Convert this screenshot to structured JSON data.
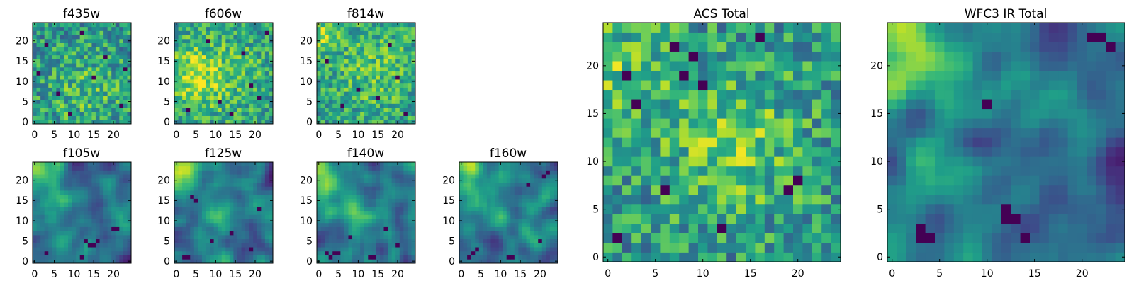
{
  "chart_data": [
    {
      "type": "heatmap",
      "title": "f435w",
      "xlabel": "",
      "ylabel": "",
      "xlim": [
        -0.5,
        24.5
      ],
      "ylim": [
        -0.5,
        24.5
      ],
      "xticks": [
        0,
        5,
        10,
        15,
        20
      ],
      "yticks": [
        0,
        5,
        10,
        15,
        20
      ],
      "xtick_labels": [
        "0",
        "5",
        "10",
        "15",
        "20"
      ],
      "ytick_labels": [
        "0",
        "5",
        "10",
        "15",
        "20"
      ],
      "grid_size": 25,
      "colormap": "viridis",
      "pattern": "noise",
      "seed": 11,
      "features": [
        {
          "x": 13,
          "y": 8,
          "r": 7,
          "amp": 0.15
        }
      ],
      "dark_cells": [
        [
          15,
          11
        ],
        [
          22,
          4
        ],
        [
          3,
          19
        ],
        [
          9,
          2
        ],
        [
          18,
          16
        ],
        [
          6,
          7
        ],
        [
          23,
          13
        ],
        [
          1,
          12
        ],
        [
          12,
          22
        ]
      ]
    },
    {
      "type": "heatmap",
      "title": "f606w",
      "xlabel": "",
      "ylabel": "",
      "xlim": [
        -0.5,
        24.5
      ],
      "ylim": [
        -0.5,
        24.5
      ],
      "xticks": [
        0,
        5,
        10,
        15,
        20
      ],
      "yticks": [
        0,
        5,
        10,
        15,
        20
      ],
      "xtick_labels": [
        "0",
        "5",
        "10",
        "15",
        "20"
      ],
      "ytick_labels": [
        "0",
        "5",
        "10",
        "15",
        "20"
      ],
      "grid_size": 25,
      "colormap": "viridis",
      "pattern": "band",
      "seed": 23,
      "features": [
        {
          "x": 4,
          "y": 11,
          "r": 5,
          "amp": 0.25
        },
        {
          "x": 12,
          "y": 12,
          "r": 9,
          "amp": 0.18
        }
      ],
      "dark_cells": [
        [
          14,
          2
        ],
        [
          8,
          20
        ],
        [
          21,
          6
        ],
        [
          3,
          3
        ],
        [
          17,
          17
        ],
        [
          11,
          5
        ],
        [
          23,
          22
        ],
        [
          19,
          9
        ]
      ]
    },
    {
      "type": "heatmap",
      "title": "f814w",
      "xlabel": "",
      "ylabel": "",
      "xlim": [
        -0.5,
        24.5
      ],
      "ylim": [
        -0.5,
        24.5
      ],
      "xticks": [
        0,
        5,
        10,
        15,
        20
      ],
      "yticks": [
        0,
        5,
        10,
        15,
        20
      ],
      "xtick_labels": [
        "0",
        "5",
        "10",
        "15",
        "20"
      ],
      "ytick_labels": [
        "0",
        "5",
        "10",
        "15",
        "20"
      ],
      "grid_size": 25,
      "colormap": "viridis",
      "pattern": "band",
      "seed": 37,
      "features": [
        {
          "x": 0,
          "y": 22,
          "r": 3,
          "amp": 0.3
        },
        {
          "x": 14,
          "y": 13,
          "r": 9,
          "amp": 0.2
        }
      ],
      "dark_cells": [
        [
          6,
          4
        ],
        [
          18,
          19
        ],
        [
          10,
          8
        ],
        [
          22,
          2
        ],
        [
          2,
          15
        ],
        [
          15,
          6
        ],
        [
          20,
          11
        ]
      ]
    },
    {
      "type": "heatmap",
      "title": "f105w",
      "xlabel": "",
      "ylabel": "",
      "xlim": [
        -0.5,
        24.5
      ],
      "ylim": [
        -0.5,
        24.5
      ],
      "xticks": [
        0,
        5,
        10,
        15,
        20
      ],
      "yticks": [
        0,
        5,
        10,
        15,
        20
      ],
      "xtick_labels": [
        "0",
        "5",
        "10",
        "15",
        "20"
      ],
      "ytick_labels": [
        "0",
        "5",
        "10",
        "15",
        "20"
      ],
      "grid_size": 25,
      "colormap": "viridis",
      "pattern": "smooth",
      "seed": 41,
      "features": [
        {
          "x": 0,
          "y": 22,
          "r": 3,
          "amp": 0.35
        },
        {
          "x": 4,
          "y": 11,
          "r": 1.5,
          "amp": 0.35
        }
      ],
      "dark_cells": [
        [
          14,
          4
        ],
        [
          15,
          4
        ],
        [
          13,
          5
        ],
        [
          16,
          5
        ],
        [
          12,
          1
        ],
        [
          20,
          8
        ],
        [
          21,
          8
        ],
        [
          3,
          2
        ]
      ]
    },
    {
      "type": "heatmap",
      "title": "f125w",
      "xlabel": "",
      "ylabel": "",
      "xlim": [
        -0.5,
        24.5
      ],
      "ylim": [
        -0.5,
        24.5
      ],
      "xticks": [
        0,
        5,
        10,
        15,
        20
      ],
      "yticks": [
        0,
        5,
        10,
        15,
        20
      ],
      "xtick_labels": [
        "0",
        "5",
        "10",
        "15",
        "20"
      ],
      "ytick_labels": [
        "0",
        "5",
        "10",
        "15",
        "20"
      ],
      "grid_size": 25,
      "colormap": "viridis",
      "pattern": "smooth",
      "seed": 53,
      "features": [
        {
          "x": 1,
          "y": 21,
          "r": 4,
          "amp": 0.4
        },
        {
          "x": 11,
          "y": 10,
          "r": 3,
          "amp": 0.2
        }
      ],
      "dark_cells": [
        [
          4,
          16
        ],
        [
          5,
          15
        ],
        [
          14,
          7
        ],
        [
          2,
          1
        ],
        [
          3,
          1
        ],
        [
          19,
          3
        ],
        [
          9,
          5
        ],
        [
          21,
          13
        ]
      ]
    },
    {
      "type": "heatmap",
      "title": "f140w",
      "xlabel": "",
      "ylabel": "",
      "xlim": [
        -0.5,
        24.5
      ],
      "ylim": [
        -0.5,
        24.5
      ],
      "xticks": [
        0,
        5,
        10,
        15,
        20
      ],
      "yticks": [
        0,
        5,
        10,
        15,
        20
      ],
      "xtick_labels": [
        "0",
        "5",
        "10",
        "15",
        "20"
      ],
      "ytick_labels": [
        "0",
        "5",
        "10",
        "15",
        "20"
      ],
      "grid_size": 25,
      "colormap": "viridis",
      "pattern": "smooth",
      "seed": 67,
      "features": [
        {
          "x": 1,
          "y": 21,
          "r": 4,
          "amp": 0.4
        },
        {
          "x": 9,
          "y": 12,
          "r": 3,
          "amp": 0.2
        }
      ],
      "dark_cells": [
        [
          2,
          2
        ],
        [
          3,
          1
        ],
        [
          4,
          2
        ],
        [
          5,
          2
        ],
        [
          13,
          1
        ],
        [
          14,
          1
        ],
        [
          20,
          4
        ],
        [
          17,
          8
        ],
        [
          8,
          6
        ]
      ]
    },
    {
      "type": "heatmap",
      "title": "f160w",
      "xlabel": "",
      "ylabel": "",
      "xlim": [
        -0.5,
        24.5
      ],
      "ylim": [
        -0.5,
        24.5
      ],
      "xticks": [
        0,
        5,
        10,
        15,
        20
      ],
      "yticks": [
        0,
        5,
        10,
        15,
        20
      ],
      "xtick_labels": [
        "0",
        "5",
        "10",
        "15",
        "20"
      ],
      "ytick_labels": [
        "0",
        "5",
        "10",
        "15",
        "20"
      ],
      "grid_size": 25,
      "colormap": "viridis",
      "pattern": "smooth",
      "seed": 79,
      "features": [
        {
          "x": 1,
          "y": 21,
          "r": 4,
          "amp": 0.45
        },
        {
          "x": 9,
          "y": 11,
          "r": 3,
          "amp": 0.2
        }
      ],
      "dark_cells": [
        [
          3,
          2
        ],
        [
          4,
          3
        ],
        [
          2,
          1
        ],
        [
          12,
          1
        ],
        [
          13,
          1
        ],
        [
          21,
          21
        ],
        [
          22,
          22
        ],
        [
          20,
          5
        ],
        [
          17,
          19
        ]
      ]
    },
    {
      "type": "heatmap",
      "title": "ACS Total",
      "xlabel": "",
      "ylabel": "",
      "xlim": [
        -0.5,
        24.5
      ],
      "ylim": [
        -0.5,
        24.5
      ],
      "xticks": [
        0,
        5,
        10,
        15,
        20
      ],
      "yticks": [
        0,
        5,
        10,
        15,
        20
      ],
      "xtick_labels": [
        "0",
        "5",
        "10",
        "15",
        "20"
      ],
      "ytick_labels": [
        "0",
        "5",
        "10",
        "15",
        "20"
      ],
      "grid_size": 25,
      "colormap": "viridis",
      "pattern": "noise",
      "seed": 97,
      "features": [
        {
          "x": 1,
          "y": 20,
          "r": 4,
          "amp": 0.2
        },
        {
          "x": 13,
          "y": 12,
          "r": 5,
          "amp": 0.25
        }
      ],
      "dark_cells": [
        [
          16,
          23
        ],
        [
          9,
          21
        ],
        [
          2,
          19
        ],
        [
          8,
          19
        ],
        [
          10,
          18
        ],
        [
          3,
          16
        ],
        [
          6,
          7
        ],
        [
          19,
          7
        ],
        [
          20,
          8
        ],
        [
          12,
          3
        ],
        [
          1,
          2
        ],
        [
          7,
          22
        ]
      ]
    },
    {
      "type": "heatmap",
      "title": "WFC3 IR Total",
      "xlabel": "",
      "ylabel": "",
      "xlim": [
        -0.5,
        24.5
      ],
      "ylim": [
        -0.5,
        24.5
      ],
      "xticks": [
        0,
        5,
        10,
        15,
        20
      ],
      "yticks": [
        0,
        5,
        10,
        15,
        20
      ],
      "xtick_labels": [
        "0",
        "5",
        "10",
        "15",
        "20"
      ],
      "ytick_labels": [
        "0",
        "5",
        "10",
        "15",
        "20"
      ],
      "grid_size": 25,
      "colormap": "viridis",
      "pattern": "smooth",
      "seed": 113,
      "features": [
        {
          "x": 1,
          "y": 21,
          "r": 4,
          "amp": 0.45
        },
        {
          "x": 3,
          "y": 10,
          "r": 1.5,
          "amp": 0.3
        }
      ],
      "dark_cells": [
        [
          3,
          2
        ],
        [
          4,
          2
        ],
        [
          3,
          3
        ],
        [
          12,
          4
        ],
        [
          13,
          4
        ],
        [
          12,
          5
        ],
        [
          21,
          23
        ],
        [
          22,
          23
        ],
        [
          23,
          22
        ],
        [
          14,
          2
        ],
        [
          10,
          16
        ]
      ]
    }
  ]
}
